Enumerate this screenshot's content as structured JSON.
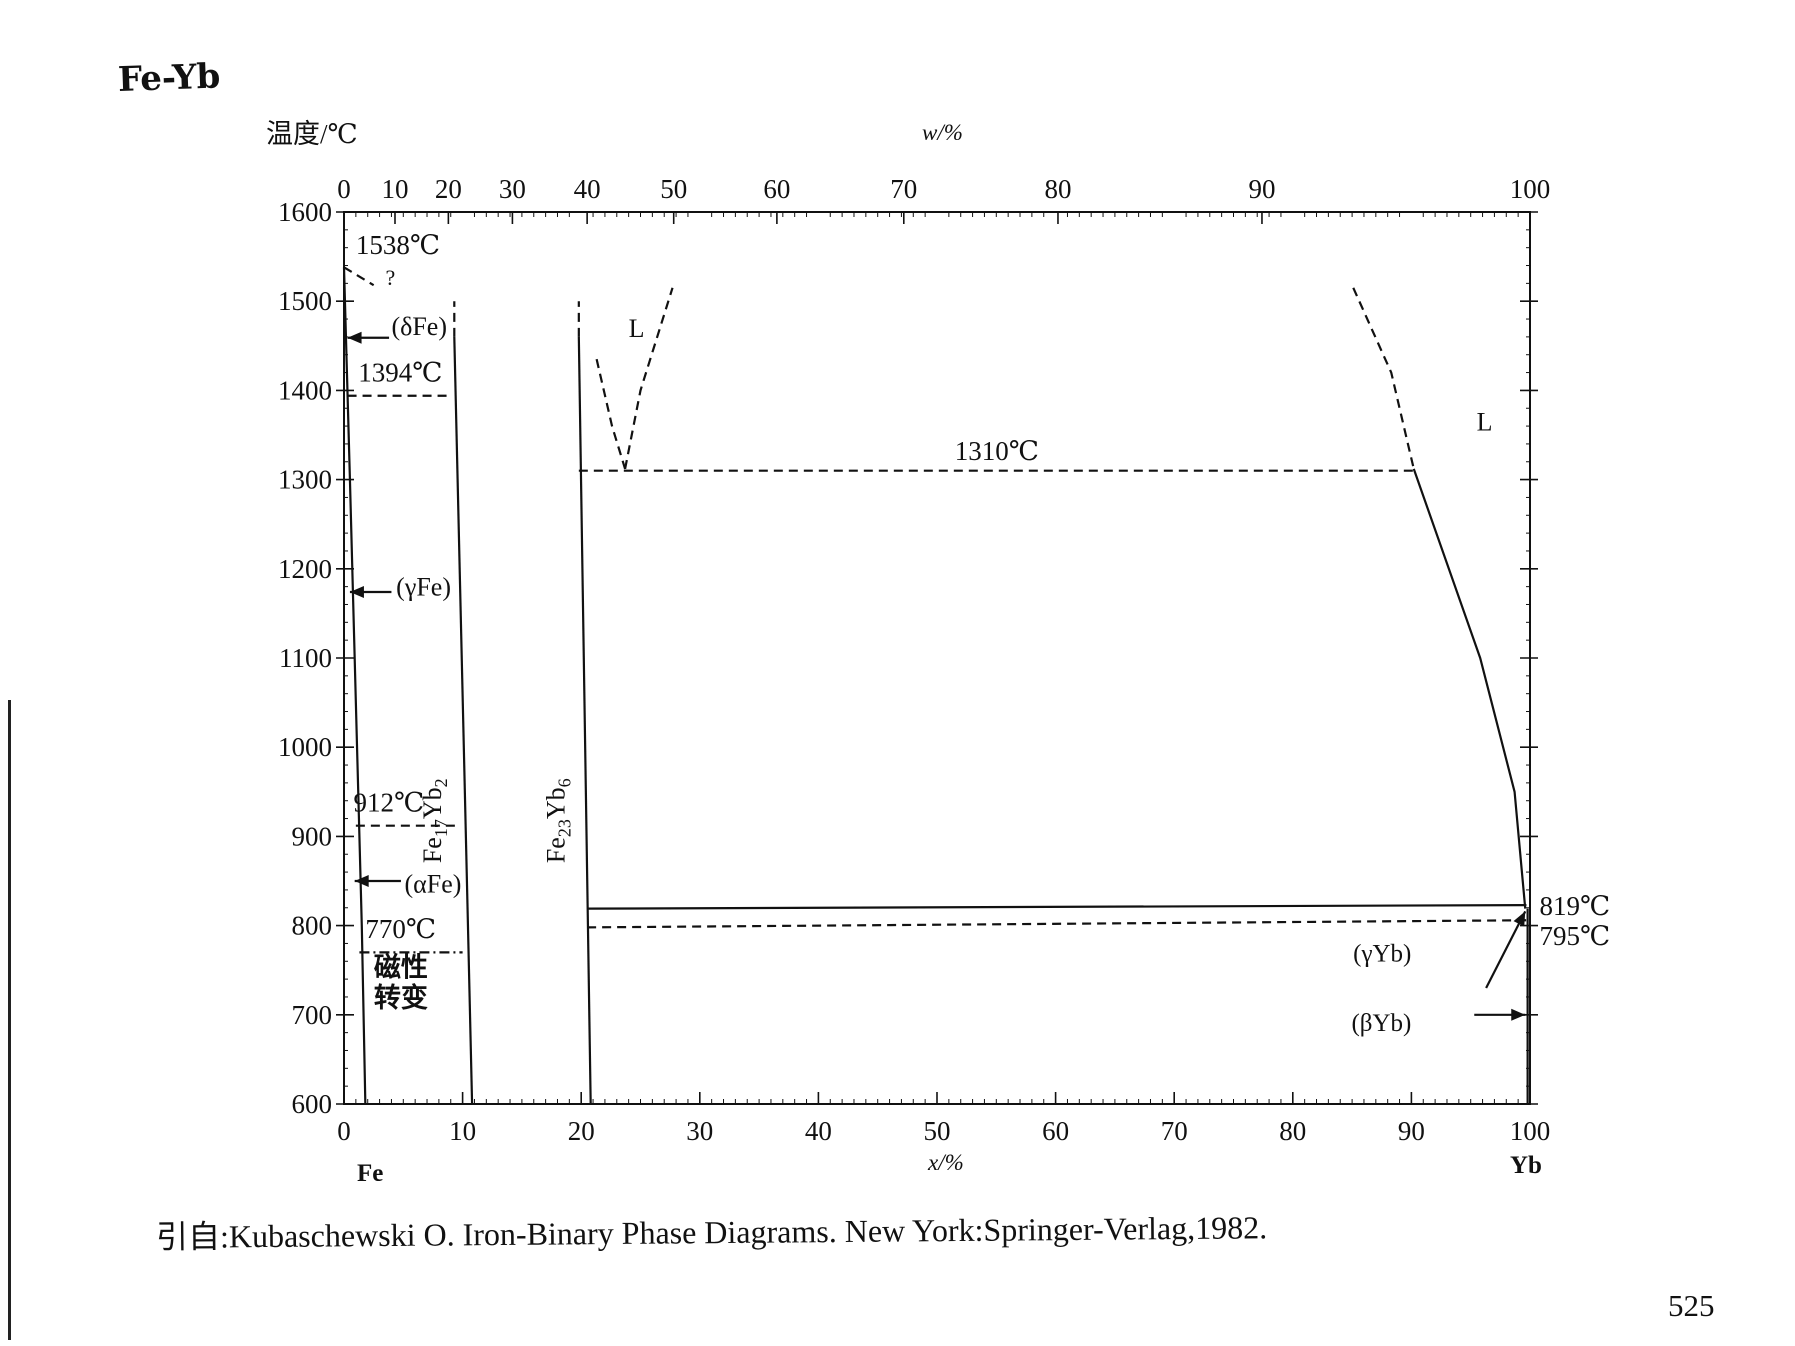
{
  "title": "Fe-Yb",
  "y_axis_label": "温度/℃",
  "top_axis_label": "w/%",
  "bottom_axis_label": "x/%",
  "left_component": "Fe",
  "right_component": "Yb",
  "citation": "引自:Kubaschewski O.  Iron-Binary Phase Diagrams. New York:Springer-Verlag,1982.",
  "page_number": "525",
  "chart_data": {
    "type": "phase-diagram",
    "xlim": [
      0,
      100
    ],
    "ylim": [
      600,
      1600
    ],
    "y_ticks": [
      1600,
      1500,
      1400,
      1300,
      1200,
      1100,
      1000,
      900,
      800,
      700,
      600
    ],
    "x_ticks": [
      0,
      10,
      20,
      30,
      40,
      50,
      60,
      70,
      80,
      90,
      100
    ],
    "top_ticks": [
      {
        "label": "0",
        "x": 0
      },
      {
        "label": "10",
        "x": 4.3
      },
      {
        "label": "20",
        "x": 8.8
      },
      {
        "label": "30",
        "x": 14.2
      },
      {
        "label": "40",
        "x": 20.5
      },
      {
        "label": "50",
        "x": 27.8
      },
      {
        "label": "60",
        "x": 36.5
      },
      {
        "label": "70",
        "x": 47.2
      },
      {
        "label": "80",
        "x": 60.2
      },
      {
        "label": "90",
        "x": 77.4
      },
      {
        "label": "100",
        "x": 100
      }
    ],
    "isotherms": [
      {
        "label": "1538℃",
        "temperature": 1538
      },
      {
        "label": "1394℃",
        "temperature": 1394
      },
      {
        "label": "1310℃",
        "temperature": 1310
      },
      {
        "label": "912℃",
        "temperature": 912
      },
      {
        "label": "819℃",
        "temperature": 819
      },
      {
        "label": "795℃",
        "temperature": 795
      },
      {
        "label": "770℃",
        "temperature": 770
      }
    ],
    "compounds": [
      {
        "label": "Fe17Yb2",
        "x": 10.5
      },
      {
        "label": "Fe23Yb6",
        "x": 20.7
      }
    ],
    "phase_labels": [
      "L",
      "L",
      "(δFe)",
      "(γFe)",
      "(αFe)",
      "(γYb)",
      "(βYb)",
      "?"
    ],
    "magnetic_transition_label": [
      "磁性",
      "转变"
    ],
    "lines": [
      {
        "name": "fe-solvus",
        "style": "solid",
        "points": [
          [
            0,
            1538
          ],
          [
            0.5,
            1300
          ],
          [
            1.5,
            800
          ],
          [
            1.8,
            600
          ]
        ]
      },
      {
        "name": "fe17yb2-line",
        "style": "solid",
        "points": [
          [
            9.3,
            1460
          ],
          [
            10.8,
            600
          ]
        ]
      },
      {
        "name": "fe17yb2-top",
        "style": "dashed",
        "points": [
          [
            9.3,
            1460
          ],
          [
            9.3,
            1500
          ]
        ]
      },
      {
        "name": "fe23yb6-line",
        "style": "solid",
        "points": [
          [
            19.8,
            1460
          ],
          [
            20.8,
            600
          ]
        ]
      },
      {
        "name": "fe23yb6-top",
        "style": "dashed",
        "points": [
          [
            19.8,
            1460
          ],
          [
            19.8,
            1500
          ]
        ]
      },
      {
        "name": "liquidus-eutectic-left",
        "style": "dashed",
        "points": [
          [
            21.3,
            1435
          ],
          [
            22.6,
            1360
          ],
          [
            23.7,
            1312
          ]
        ]
      },
      {
        "name": "liquidus-eutectic-right",
        "style": "dashed",
        "points": [
          [
            23.7,
            1312
          ],
          [
            25.0,
            1400
          ],
          [
            27.7,
            1515
          ]
        ]
      },
      {
        "name": "yb-liquidus-dashed",
        "style": "dashed",
        "points": [
          [
            85.1,
            1515
          ],
          [
            88.3,
            1420
          ],
          [
            90.2,
            1312
          ]
        ]
      },
      {
        "name": "yb-liquidus-solid",
        "style": "solid",
        "points": [
          [
            90.2,
            1312
          ],
          [
            95.8,
            1100
          ],
          [
            98.7,
            950
          ],
          [
            99.6,
            819
          ]
        ]
      },
      {
        "name": "yb-axis-line",
        "style": "solid",
        "points": [
          [
            99.8,
            819
          ],
          [
            99.8,
            600
          ]
        ]
      },
      {
        "name": "eutectic-1310",
        "style": "dashed",
        "points": [
          [
            19.8,
            1310
          ],
          [
            90.2,
            1310
          ]
        ]
      },
      {
        "name": "isotherm-819",
        "style": "solid",
        "points": [
          [
            20.5,
            819
          ],
          [
            99.7,
            823
          ]
        ]
      },
      {
        "name": "isotherm-795",
        "style": "dashed",
        "points": [
          [
            20.5,
            798
          ],
          [
            99.7,
            806
          ]
        ]
      },
      {
        "name": "isotherm-1394",
        "style": "dashed",
        "points": [
          [
            0.3,
            1394
          ],
          [
            9.0,
            1394
          ]
        ]
      },
      {
        "name": "isotherm-912",
        "style": "dashed",
        "points": [
          [
            1.0,
            912
          ],
          [
            9.6,
            912
          ]
        ]
      },
      {
        "name": "isotherm-770",
        "style": "dashdot",
        "points": [
          [
            1.3,
            770
          ],
          [
            10.0,
            770
          ]
        ]
      },
      {
        "name": "fe-1538-dash",
        "style": "dashed",
        "points": [
          [
            0,
            1538
          ],
          [
            2.5,
            1518
          ]
        ]
      }
    ]
  }
}
